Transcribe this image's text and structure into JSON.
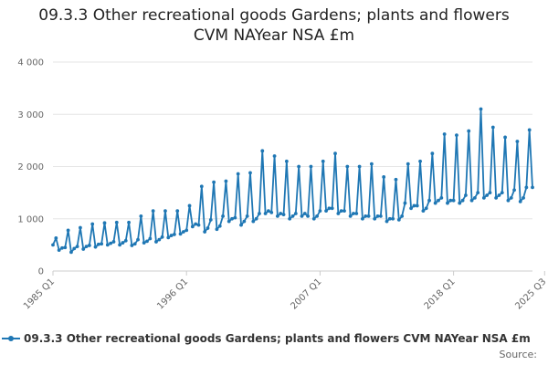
{
  "title_lines": [
    "09.3.3 Other recreational goods Gardens; plants and flowers",
    "CVM NAYear NSA £m"
  ],
  "colors": {
    "series": "#1f77b4",
    "grid": "#e6e6e6",
    "axis": "#cccccc"
  },
  "source_label": "Source:",
  "chart_data": {
    "type": "line",
    "title": "09.3.3 Other recreational goods Gardens; plants and flowers CVM NAYear NSA £m",
    "xlabel": "",
    "ylabel": "",
    "ylim": [
      0,
      4000
    ],
    "yticks": [
      0,
      1000,
      2000,
      3000,
      4000
    ],
    "ytick_labels": [
      "0",
      "1 000",
      "2 000",
      "3 000",
      "4 000"
    ],
    "xtick_labels": [
      "1985 Q1",
      "1996 Q1",
      "2007 Q1",
      "2018 Q1",
      "2025 Q3"
    ],
    "xtick_positions": [
      0,
      44,
      88,
      132,
      162
    ],
    "legend": {
      "position": "bottom-left",
      "label": "09.3.3 Other recreational goods Gardens; plants and flowers CVM NAYear NSA £m"
    },
    "series": [
      {
        "name": "09.3.3 Other recreational goods Gardens; plants and flowers CVM NAYear NSA £m",
        "values": [
          500,
          630,
          400,
          440,
          450,
          780,
          360,
          430,
          470,
          830,
          420,
          470,
          490,
          900,
          460,
          510,
          520,
          920,
          500,
          530,
          560,
          930,
          500,
          540,
          580,
          930,
          490,
          520,
          600,
          1050,
          540,
          570,
          620,
          1150,
          560,
          600,
          650,
          1150,
          640,
          680,
          700,
          1150,
          710,
          750,
          780,
          1250,
          850,
          900,
          880,
          1620,
          750,
          820,
          980,
          1700,
          800,
          860,
          1050,
          1720,
          950,
          1000,
          1020,
          1860,
          880,
          950,
          1050,
          1880,
          950,
          1000,
          1100,
          2300,
          1100,
          1150,
          1120,
          2200,
          1050,
          1100,
          1080,
          2100,
          1000,
          1050,
          1100,
          2000,
          1050,
          1100,
          1050,
          2000,
          1000,
          1050,
          1150,
          2100,
          1150,
          1200,
          1200,
          2250,
          1100,
          1150,
          1150,
          2000,
          1050,
          1100,
          1100,
          2000,
          1000,
          1050,
          1050,
          2050,
          1000,
          1050,
          1050,
          1800,
          950,
          1000,
          1000,
          1750,
          980,
          1050,
          1300,
          2050,
          1200,
          1250,
          1250,
          2100,
          1150,
          1200,
          1350,
          2250,
          1300,
          1350,
          1400,
          2620,
          1300,
          1350,
          1350,
          2600,
          1300,
          1350,
          1450,
          2680,
          1350,
          1400,
          1500,
          3100,
          1400,
          1450,
          1500,
          2750,
          1400,
          1450,
          1500,
          2560,
          1350,
          1400,
          1550,
          2480,
          1330,
          1400,
          1600,
          2700,
          1600
        ]
      }
    ]
  }
}
